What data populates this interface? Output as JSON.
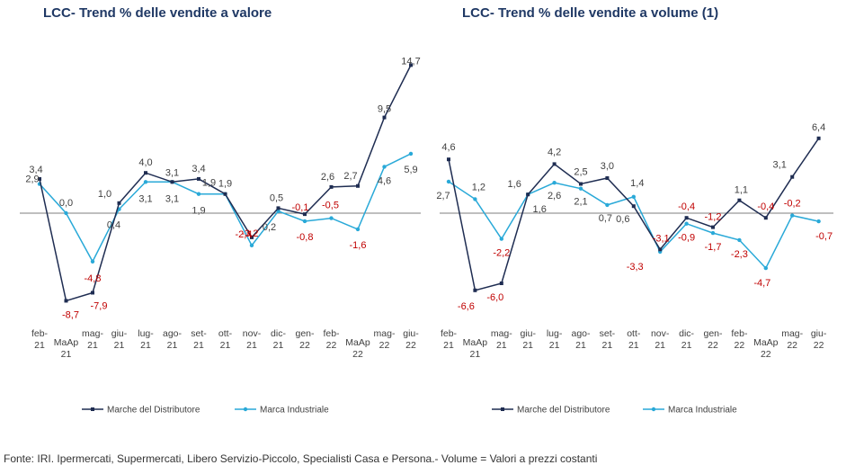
{
  "footer": "Fonte: IRI. Ipermercati, Supermercati, Libero Servizio-Piccolo, Specialisti Casa e Persona.- Volume = Valori a prezzi costanti",
  "colors": {
    "private_label": "#1f2d52",
    "industrial": "#29a9d8",
    "negative_label": "#c00000",
    "positive_label": "#404040",
    "axis": "#7f7f7f"
  },
  "chart_data": [
    {
      "type": "line",
      "title": "LCC- Trend % delle vendite a valore",
      "categories": [
        "feb-21",
        "MaAp 21",
        "mag-21",
        "giu-21",
        "lug-21",
        "ago-21",
        "set-21",
        "ott-21",
        "nov-21",
        "dic-21",
        "gen-22",
        "feb-22",
        "MaAp 22",
        "mag-22",
        "giu-22"
      ],
      "ylim": [
        -10,
        16
      ],
      "series": [
        {
          "name": "Marche del Distributore",
          "values": [
            3.4,
            -8.7,
            -7.9,
            1.0,
            4.0,
            3.1,
            3.4,
            1.9,
            -2.4,
            0.5,
            -0.1,
            2.6,
            2.7,
            9.5,
            14.7
          ]
        },
        {
          "name": "Marca Industriale",
          "values": [
            2.9,
            0.0,
            -4.8,
            0.4,
            3.1,
            3.1,
            1.9,
            1.9,
            -3.2,
            0.2,
            -0.8,
            -0.5,
            -1.6,
            4.6,
            5.9
          ]
        }
      ]
    },
    {
      "type": "line",
      "title": "LCC- Trend % delle vendite a volume (1)",
      "categories": [
        "feb-21",
        "MaAp 21",
        "mag-21",
        "giu-21",
        "lug-21",
        "ago-21",
        "set-21",
        "ott-21",
        "nov-21",
        "dic-21",
        "gen-22",
        "feb-22",
        "MaAp 22",
        "mag-22",
        "giu-22"
      ],
      "ylim": [
        -10,
        9
      ],
      "series": [
        {
          "name": "Marche del Distributore",
          "values": [
            4.6,
            -6.6,
            -6.0,
            1.6,
            4.2,
            2.5,
            3.0,
            0.6,
            -3.1,
            -0.4,
            -1.2,
            1.1,
            -0.4,
            3.1,
            6.4
          ]
        },
        {
          "name": "Marca Industriale",
          "values": [
            2.7,
            1.2,
            -2.2,
            1.6,
            2.6,
            2.1,
            0.7,
            1.4,
            -3.3,
            -0.9,
            -1.7,
            -2.3,
            -4.7,
            -0.2,
            -0.7
          ]
        }
      ]
    }
  ]
}
